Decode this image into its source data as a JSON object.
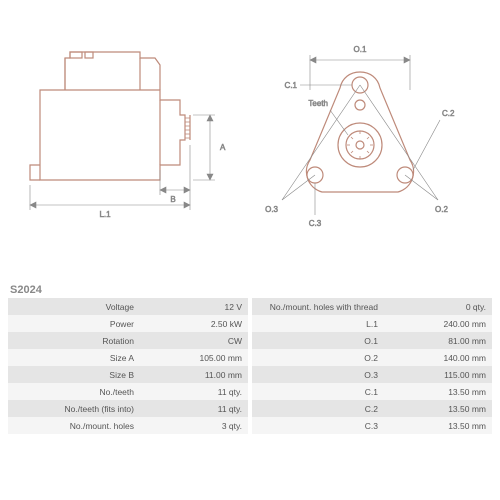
{
  "part_number": "S2024",
  "diagram": {
    "stroke_color": "#be8a7a",
    "dimension_color": "#888888",
    "label_font_size": 8,
    "left_view": {
      "labels": {
        "L1": "L.1",
        "A": "A",
        "B": "B"
      }
    },
    "right_view": {
      "labels": {
        "O1": "O.1",
        "O2": "O.2",
        "O3": "O.3",
        "C1": "C.1",
        "C2": "C.2",
        "C3": "C.3",
        "Teeth": "Teeth"
      }
    }
  },
  "specs_left": [
    {
      "label": "Voltage",
      "value": "12 V"
    },
    {
      "label": "Power",
      "value": "2.50 kW"
    },
    {
      "label": "Rotation",
      "value": "CW"
    },
    {
      "label": "Size A",
      "value": "105.00 mm"
    },
    {
      "label": "Size B",
      "value": "11.00 mm"
    },
    {
      "label": "No./teeth",
      "value": "11 qty."
    },
    {
      "label": "No./teeth (fits into)",
      "value": "11 qty."
    },
    {
      "label": "No./mount. holes",
      "value": "3 qty."
    }
  ],
  "specs_right": [
    {
      "label": "No./mount. holes with thread",
      "value": "0 qty."
    },
    {
      "label": "L.1",
      "value": "240.00 mm"
    },
    {
      "label": "O.1",
      "value": "81.00 mm"
    },
    {
      "label": "O.2",
      "value": "140.00 mm"
    },
    {
      "label": "O.3",
      "value": "115.00 mm"
    },
    {
      "label": "C.1",
      "value": "13.50 mm"
    },
    {
      "label": "C.2",
      "value": "13.50 mm"
    },
    {
      "label": "C.3",
      "value": "13.50 mm"
    }
  ]
}
